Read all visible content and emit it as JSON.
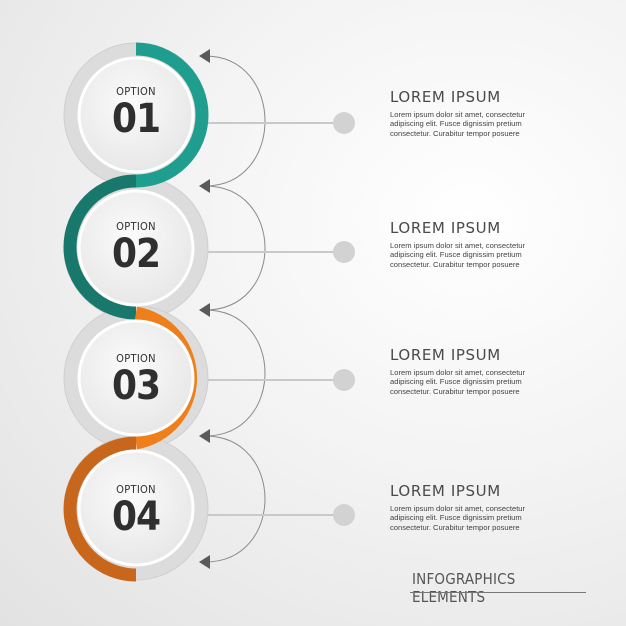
{
  "colors": {
    "teal": "#1f9e8f",
    "teal_dark": "#17786b",
    "orange": "#ef7f1a",
    "orange_dark": "#c8661c",
    "gray": "#7a7a7a"
  },
  "options": [
    {
      "word": "OPTION",
      "number": "01",
      "title": "LOREM IPSUM",
      "body": [
        "Lorem ipsum dolor sit amet, consectetur",
        "adipiscing elit. Fusce dignissim pretium",
        "consectetur. Curabitur tempor posuere"
      ]
    },
    {
      "word": "OPTION",
      "number": "02",
      "title": "LOREM IPSUM",
      "body": [
        "Lorem ipsum dolor sit amet, consectetur",
        "adipiscing elit. Fusce dignissim pretium",
        "consectetur. Curabitur tempor posuere"
      ]
    },
    {
      "word": "OPTION",
      "number": "03",
      "title": "LOREM IPSUM",
      "body": [
        "Lorem ipsum dolor sit amet, consectetur",
        "adipiscing elit. Fusce dignissim pretium",
        "consectetur. Curabitur tempor posuere"
      ]
    },
    {
      "word": "OPTION",
      "number": "04",
      "title": "LOREM IPSUM",
      "body": [
        "Lorem ipsum dolor sit amet, consectetur",
        "adipiscing elit. Fusce dignissim pretium",
        "consectetur. Curabitur tempor posuere"
      ]
    }
  ],
  "footer": "INFOGRAPHICS ELEMENTS"
}
